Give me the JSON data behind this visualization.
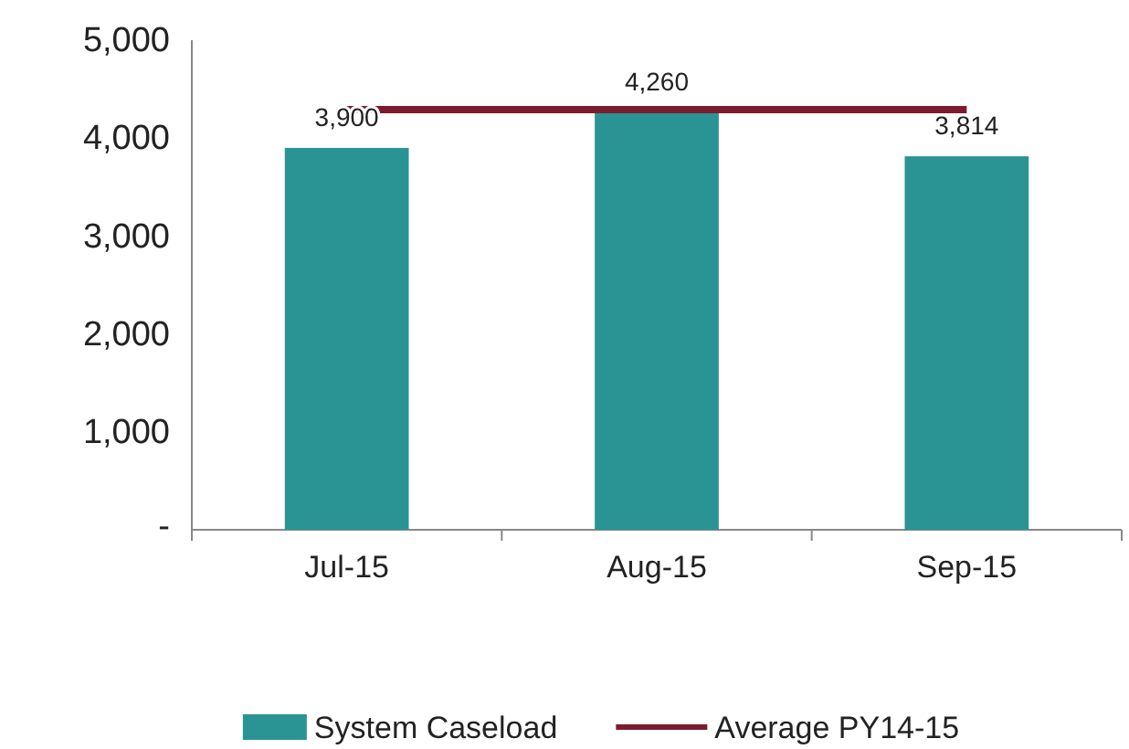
{
  "chart_data": {
    "type": "bar",
    "categories": [
      "Jul-15",
      "Aug-15",
      "Sep-15"
    ],
    "series": [
      {
        "name": "System Caseload",
        "type": "bar",
        "color": "#2a9494",
        "values": [
          3900,
          4260,
          3814
        ],
        "value_labels": [
          "3,900",
          "4,260",
          "3,814"
        ]
      },
      {
        "name": "Average PY14-15",
        "type": "line",
        "color": "#7b1c2e",
        "values": [
          4290,
          4290,
          4290
        ]
      }
    ],
    "ylim": [
      0,
      5000
    ],
    "yticks": [
      {
        "value": 0,
        "label": "-"
      },
      {
        "value": 1000,
        "label": "1,000"
      },
      {
        "value": 2000,
        "label": "2,000"
      },
      {
        "value": 3000,
        "label": "3,000"
      },
      {
        "value": 4000,
        "label": "4,000"
      },
      {
        "value": 5000,
        "label": "5,000"
      }
    ],
    "grid": false,
    "legend": "bottom",
    "marker": "none",
    "line_style": "solid"
  }
}
